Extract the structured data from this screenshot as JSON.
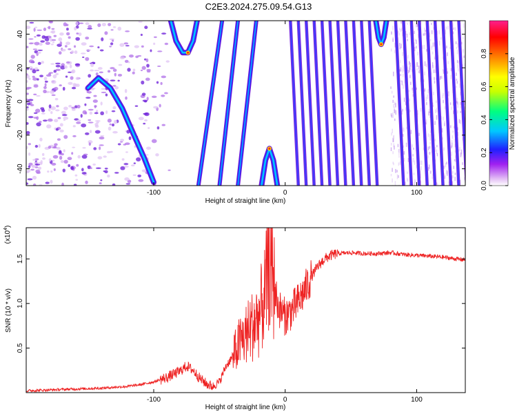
{
  "figure": {
    "title": "C2E3.2024.275.09.54.G13"
  },
  "chart_data": [
    {
      "type": "heatmap",
      "title": "C2E3.2024.275.09.54.G13",
      "xlabel": "Height of straight line (km)",
      "ylabel": "Frequency (Hz)",
      "xlim": [
        -197,
        137
      ],
      "ylim": [
        -50,
        48
      ],
      "x_ticks": [
        -100,
        0,
        100
      ],
      "x_tick_labels": [
        "-100",
        "0",
        "100"
      ],
      "y_ticks": [
        -40,
        -20,
        0,
        20,
        40
      ],
      "y_tick_labels": [
        "-40",
        "-20",
        "0",
        "20",
        "40"
      ],
      "colorbar": {
        "label": "Normalized spectral amplitude",
        "range": [
          0.0,
          1.0
        ],
        "ticks": [
          0.0,
          0.2,
          0.4,
          0.6,
          0.8
        ],
        "tick_labels": [
          "0.0",
          "0.2",
          "0.4",
          "0.6",
          "0.8"
        ],
        "colors": [
          "#ffffff",
          "#e9c4f6",
          "#a020f0",
          "#2020ff",
          "#00c8ff",
          "#00ff80",
          "#ffff00",
          "#ff8000",
          "#ff0000",
          "#ff1e8c"
        ]
      },
      "features": {
        "parabolic_ridge": {
          "x": [
            -150,
            -142,
            -133,
            -124,
            -115,
            -107,
            -100
          ],
          "y": [
            8,
            14,
            8,
            -4,
            -20,
            -34,
            -48
          ]
        },
        "peak_right_bend": {
          "x": [
            -87,
            -83,
            -78,
            -74,
            -70,
            -67
          ],
          "y": [
            48,
            36,
            29,
            29,
            36,
            48
          ]
        },
        "lower_arch": {
          "x": [
            -18,
            -15,
            -12,
            -9,
            -6
          ],
          "y": [
            -50,
            -35,
            -28,
            -35,
            -50
          ]
        },
        "upper_notch": {
          "x": [
            69,
            71,
            73,
            75,
            77
          ],
          "y": [
            48,
            38,
            34,
            38,
            48
          ]
        },
        "left_slanted_lines_x_at_top": [
          -48,
          -36,
          -22
        ],
        "left_slanted_lines_x_at_bottom": [
          -66,
          -50,
          -36
        ],
        "right_slanted_lines_x_at_top": [
          4,
          10,
          16,
          22,
          28,
          34,
          40,
          46,
          52,
          58,
          64,
          84,
          90,
          96,
          102,
          108,
          114,
          120,
          126,
          132
        ],
        "right_slanted_lines_x_at_bottom": [
          4,
          16,
          28,
          40,
          52,
          66,
          80,
          92,
          104,
          116,
          128,
          137,
          137,
          137,
          137,
          137,
          137,
          137,
          137,
          137
        ]
      }
    },
    {
      "type": "line",
      "xlabel": "Height of straight line (km)",
      "ylabel": "SNR (10 * v/v)",
      "y_multiplier_label": "(x10",
      "y_multiplier_exponent": "4",
      "y_multiplier_suffix": ")",
      "xlim": [
        -197,
        137
      ],
      "ylim": [
        0,
        1.85
      ],
      "x_ticks": [
        -100,
        0,
        100
      ],
      "x_tick_labels": [
        "-100",
        "0",
        "100"
      ],
      "y_ticks": [
        0.5,
        1.0,
        1.5
      ],
      "y_tick_labels": [
        "0.5",
        "1.0",
        "1.5"
      ],
      "series": [
        {
          "color": "#ee2222",
          "x": [
            -197,
            -180,
            -160,
            -140,
            -120,
            -110,
            -100,
            -90,
            -80,
            -75,
            -70,
            -65,
            -60,
            -55,
            -50,
            -45,
            -40,
            -35,
            -30,
            -25,
            -20,
            -15,
            -12,
            -10,
            -5,
            0,
            5,
            10,
            15,
            20,
            25,
            30,
            35,
            40,
            50,
            60,
            70,
            80,
            90,
            100,
            110,
            120,
            130,
            137
          ],
          "y": [
            0.02,
            0.03,
            0.04,
            0.05,
            0.07,
            0.09,
            0.12,
            0.17,
            0.24,
            0.3,
            0.25,
            0.16,
            0.1,
            0.07,
            0.12,
            0.3,
            0.4,
            0.55,
            0.65,
            0.75,
            0.85,
            1.1,
            1.55,
            1.3,
            0.95,
            0.85,
            0.92,
            1.02,
            1.15,
            1.3,
            1.42,
            1.5,
            1.54,
            1.56,
            1.57,
            1.56,
            1.56,
            1.57,
            1.55,
            1.54,
            1.53,
            1.52,
            1.5,
            1.49
          ]
        }
      ]
    }
  ]
}
